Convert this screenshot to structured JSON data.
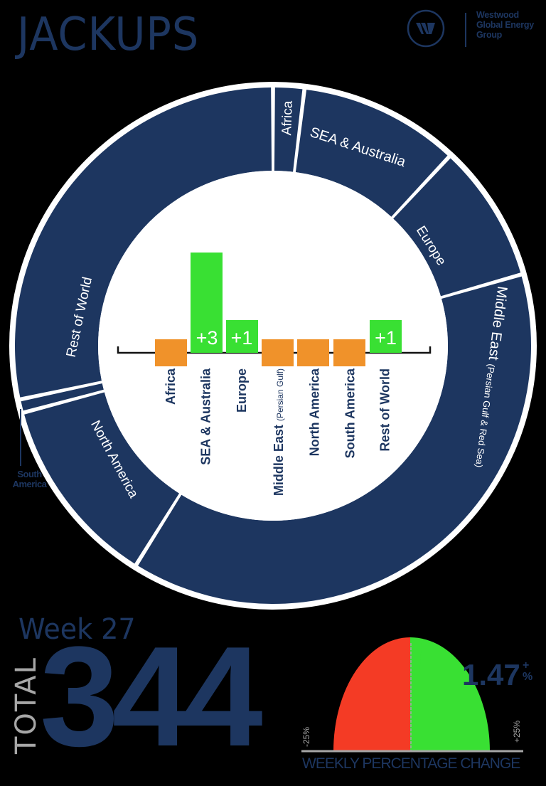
{
  "header": {
    "title": "JACKUPS",
    "logo": {
      "icon": "westwood-w-logo-icon",
      "lines": [
        "Westwood",
        "Global Energy",
        "Group"
      ]
    }
  },
  "colors": {
    "navy": "#1d3660",
    "increase": "#39e033",
    "neutral": "#f0922a",
    "decrease": "#f43b25",
    "muted": "#a7a7a7",
    "ring_border": "#ffffff"
  },
  "donut": {
    "segments": [
      {
        "label": "Africa",
        "start_deg": 0,
        "end_deg": 7
      },
      {
        "label": "SEA & Australia",
        "start_deg": 7,
        "end_deg": 43
      },
      {
        "label": "Europe",
        "start_deg": 43,
        "end_deg": 74
      },
      {
        "label": "Middle East",
        "sublabel": "(Persian Gulf & Red Sea)",
        "start_deg": 74,
        "end_deg": 212
      },
      {
        "label": "North America",
        "start_deg": 212,
        "end_deg": 255
      },
      {
        "label": "South America",
        "start_deg": 255,
        "end_deg": 258
      },
      {
        "label": "Rest of World",
        "start_deg": 258,
        "end_deg": 360
      }
    ],
    "callout": "South America"
  },
  "chart_data": [
    {
      "type": "bar",
      "title": "Weekly change in jackup count by region",
      "categories": [
        "Africa",
        "SEA & Australia",
        "Europe",
        "Middle East (Persian Gulf)",
        "North America",
        "South America",
        "Rest of World"
      ],
      "values": [
        0,
        3,
        1,
        0,
        0,
        0,
        1
      ],
      "value_labels": [
        "",
        "+3",
        "+1",
        "",
        "",
        "",
        "+1"
      ],
      "xlabel": "",
      "ylabel": "",
      "grid": false
    },
    {
      "type": "pie",
      "title": "Jackups by region (donut)",
      "categories": [
        "Africa",
        "SEA & Australia",
        "Europe",
        "Middle East (Persian Gulf & Red Sea)",
        "North America",
        "South America",
        "Rest of World"
      ],
      "values_approx_share_pct": [
        1.9,
        10.0,
        8.6,
        38.3,
        11.9,
        0.8,
        28.3
      ]
    },
    {
      "type": "gauge",
      "title": "WEEKLY PERCENTAGE CHANGE",
      "value": 1.47,
      "value_label": "1.47",
      "unit": "%",
      "direction": "+",
      "range": [
        -25,
        25
      ],
      "tick_labels": [
        "-25%",
        "+25%"
      ]
    }
  ],
  "bars": {
    "labels": [
      "Africa",
      "SEA & Australia",
      "Europe",
      "Middle East",
      "North America",
      "South America",
      "Rest of World"
    ],
    "sublabels": {
      "middle_east": "(Persian Gulf)"
    },
    "values": [
      "",
      "+3",
      "+1",
      "",
      "",
      "",
      "+1"
    ]
  },
  "summary": {
    "week": "Week 27",
    "total_word": "TOTAL",
    "total": "344"
  },
  "gauge": {
    "value": "1.47",
    "sign": "+",
    "unit": "%",
    "min_label": "-25%",
    "max_label": "+25%",
    "caption": "WEEKLY PERCENTAGE CHANGE"
  }
}
